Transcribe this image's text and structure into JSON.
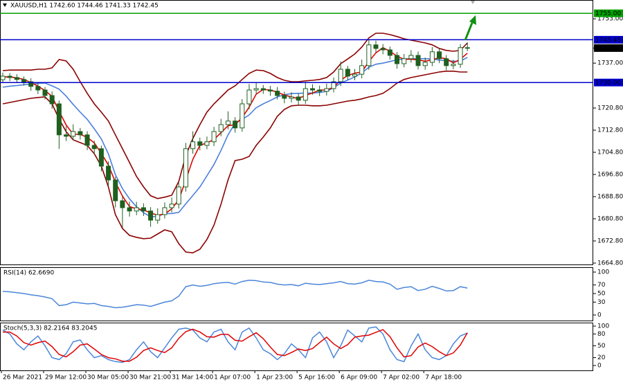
{
  "chart_data": [
    {
      "type": "candlestick",
      "title": "XAUUSD,H1  1742.60 1744.46 1741.33 1742.45",
      "categories": [
        "26 Mar 2021",
        null,
        null,
        null,
        null,
        null,
        "29 Mar 12:00",
        null,
        null,
        null,
        null,
        null,
        "30 Mar 05:00",
        null,
        null,
        null,
        null,
        null,
        "30 Mar 21:00",
        null,
        null,
        null,
        null,
        null,
        "31 Mar 14:00",
        null,
        null,
        null,
        null,
        null,
        "1 Apr 07:00",
        null,
        null,
        null,
        null,
        null,
        "1 Apr 23:00",
        null,
        null,
        null,
        null,
        null,
        "5 Apr 16:00",
        null,
        null,
        null,
        null,
        null,
        "6 Apr 09:00",
        null,
        null,
        null,
        null,
        null,
        "7 Apr 02:00",
        null,
        null,
        null,
        null,
        null,
        "7 Apr 18:00",
        null,
        null,
        null,
        null,
        null,
        null
      ],
      "open": [
        1731.0,
        1732.3,
        1731.8,
        1731.1,
        1730.3,
        1728.6,
        1727.3,
        1725.3,
        1722.3,
        1711.1,
        1710.6,
        1712.3,
        1711.1,
        1707.3,
        1706.1,
        1699.8,
        1694.8,
        1687.3,
        1684.8,
        1683.6,
        1684.8,
        1683.6,
        1680.3,
        1682.3,
        1684.8,
        1686.1,
        1692.3,
        1706.1,
        1708.6,
        1707.3,
        1708.6,
        1712.3,
        1714.8,
        1716.1,
        1713.6,
        1722.3,
        1727.3,
        1727.8,
        1727.3,
        1726.9,
        1725.3,
        1724.3,
        1724.8,
        1723.6,
        1727.8,
        1727.3,
        1726.8,
        1727.8,
        1730.3,
        1734.8,
        1732.3,
        1733.0,
        1736.1,
        1743.6,
        1742.3,
        1741.8,
        1739.8,
        1736.8,
        1738.6,
        1739.8,
        1736.1,
        1737.3,
        1741.1,
        1738.6,
        1736.1,
        1736.6,
        1742.6
      ],
      "high": [
        1733.6,
        1733.4,
        1733.0,
        1732.2,
        1731.5,
        1729.9,
        1728.4,
        1726.8,
        1723.5,
        1714.2,
        1714.9,
        1713.6,
        1712.4,
        1709.0,
        1707.2,
        1701.5,
        1696.0,
        1689.1,
        1687.0,
        1686.9,
        1686.4,
        1685.0,
        1684.6,
        1686.7,
        1688.5,
        1693.9,
        1708.2,
        1712.4,
        1710.1,
        1710.5,
        1714.0,
        1716.9,
        1719.6,
        1717.5,
        1724.0,
        1729.5,
        1729.8,
        1729.1,
        1728.8,
        1728.4,
        1726.7,
        1726.5,
        1726.0,
        1730.2,
        1729.4,
        1728.9,
        1729.6,
        1731.8,
        1737.6,
        1736.0,
        1734.9,
        1738.3,
        1745.5,
        1745.1,
        1743.9,
        1743.0,
        1741.0,
        1740.3,
        1741.7,
        1741.2,
        1739.0,
        1742.8,
        1742.5,
        1739.9,
        1738.2,
        1743.9,
        1744.46
      ],
      "low": [
        1729.9,
        1730.5,
        1729.8,
        1728.9,
        1727.0,
        1725.8,
        1723.9,
        1720.5,
        1706.0,
        1708.9,
        1709.2,
        1709.4,
        1705.6,
        1704.2,
        1697.9,
        1692.6,
        1684.9,
        1677.5,
        1681.6,
        1682.1,
        1681.8,
        1677.9,
        1679.0,
        1680.9,
        1683.1,
        1684.5,
        1690.6,
        1704.3,
        1705.5,
        1705.9,
        1707.0,
        1710.6,
        1713.1,
        1711.9,
        1712.2,
        1720.4,
        1725.6,
        1725.9,
        1725.2,
        1723.9,
        1722.5,
        1722.8,
        1721.8,
        1722.3,
        1725.6,
        1725.1,
        1725.3,
        1726.4,
        1728.7,
        1730.9,
        1730.8,
        1731.5,
        1734.6,
        1740.6,
        1740.2,
        1738.3,
        1735.0,
        1735.5,
        1737.2,
        1734.7,
        1734.6,
        1735.9,
        1737.0,
        1734.4,
        1734.8,
        1735.3,
        1741.33
      ],
      "close": [
        1732.3,
        1731.8,
        1731.1,
        1730.3,
        1728.6,
        1727.3,
        1725.3,
        1722.3,
        1711.1,
        1710.6,
        1712.3,
        1711.1,
        1707.3,
        1706.1,
        1699.8,
        1694.8,
        1687.3,
        1684.8,
        1683.6,
        1684.8,
        1683.6,
        1680.3,
        1682.3,
        1684.8,
        1686.1,
        1692.3,
        1706.1,
        1708.6,
        1707.3,
        1708.6,
        1712.3,
        1714.8,
        1716.1,
        1713.6,
        1722.3,
        1727.3,
        1727.8,
        1727.3,
        1726.9,
        1725.3,
        1724.3,
        1724.8,
        1723.6,
        1727.8,
        1727.3,
        1726.8,
        1727.8,
        1730.3,
        1734.8,
        1732.3,
        1733.0,
        1736.1,
        1743.6,
        1742.3,
        1741.8,
        1739.8,
        1736.8,
        1738.6,
        1739.8,
        1736.1,
        1737.3,
        1741.1,
        1738.6,
        1736.1,
        1736.6,
        1742.6,
        1742.45
      ],
      "up_color": "#ffffff",
      "down_color": "#1f5f1f",
      "candle_stroke": "#1f5f1f",
      "overlays": [
        {
          "color": "#8b0000",
          "values": [
            1734.3,
            1734.5,
            1734.5,
            1734.5,
            1734.5,
            1734.8,
            1734.8,
            1735.3,
            1738.3,
            1737.8,
            1734.8,
            1730.3,
            1726.1,
            1722.3,
            1719.3,
            1716.1,
            1711.1,
            1706.1,
            1701.1,
            1696.1,
            1692.3,
            1689.1,
            1688.1,
            1688.6,
            1689.3,
            1694.3,
            1703.6,
            1709.8,
            1714.8,
            1719.3,
            1722.3,
            1724.8,
            1727.3,
            1728.8,
            1731.1,
            1733.3,
            1734.5,
            1734.3,
            1733.3,
            1731.8,
            1730.8,
            1730.3,
            1730.3,
            1730.6,
            1730.8,
            1731.1,
            1731.8,
            1733.8,
            1736.8,
            1738.5,
            1740.3,
            1742.8,
            1746.1,
            1747.8,
            1747.8,
            1747.3,
            1746.6,
            1745.8,
            1745.3,
            1744.8,
            1744.3,
            1743.6,
            1742.3,
            1741.6,
            1741.3,
            1741.6,
            1744.3
          ]
        },
        {
          "color": "#8b0000",
          "values": [
            1722.3,
            1722.8,
            1723.3,
            1723.8,
            1724.3,
            1724.6,
            1724.8,
            1722.3,
            1716.8,
            1712.3,
            1709.3,
            1708.3,
            1707.3,
            1704.3,
            1699.8,
            1692.3,
            1682.3,
            1677.3,
            1674.8,
            1674.1,
            1673.6,
            1673.8,
            1675.3,
            1676.8,
            1676.1,
            1671.8,
            1668.8,
            1668.5,
            1669.8,
            1673.3,
            1678.5,
            1686.1,
            1694.8,
            1701.8,
            1702.3,
            1703.3,
            1707.3,
            1710.3,
            1713.6,
            1717.8,
            1720.3,
            1721.6,
            1721.8,
            1721.8,
            1721.6,
            1721.6,
            1721.8,
            1722.3,
            1722.8,
            1723.3,
            1723.6,
            1724.1,
            1724.8,
            1725.3,
            1726.1,
            1727.8,
            1729.8,
            1731.1,
            1731.8,
            1732.3,
            1732.8,
            1733.3,
            1733.8,
            1734.1,
            1734.1,
            1733.8,
            1733.8
          ]
        },
        {
          "color": "#4a7fdc",
          "values": [
            1728.3,
            1728.7,
            1728.9,
            1729.2,
            1729.4,
            1729.7,
            1729.8,
            1728.8,
            1727.6,
            1725.1,
            1722.1,
            1719.3,
            1716.7,
            1713.3,
            1709.6,
            1704.2,
            1696.7,
            1691.7,
            1688.0,
            1685.1,
            1683.0,
            1681.5,
            1681.7,
            1682.7,
            1682.7,
            1683.1,
            1686.2,
            1689.2,
            1692.3,
            1696.3,
            1700.4,
            1705.5,
            1711.1,
            1715.3,
            1716.7,
            1718.3,
            1720.9,
            1722.3,
            1723.5,
            1724.8,
            1725.6,
            1726.0,
            1726.1,
            1726.2,
            1726.2,
            1726.4,
            1726.8,
            1728.1,
            1729.8,
            1730.9,
            1732.0,
            1733.5,
            1735.5,
            1736.6,
            1737.0,
            1737.6,
            1738.2,
            1738.5,
            1738.6,
            1738.6,
            1738.6,
            1738.5,
            1738.1,
            1737.9,
            1737.7,
            1737.7,
            1739.1
          ]
        },
        {
          "color": "#e00000",
          "values": [
            1732.0,
            1732.0,
            1731.7,
            1731.1,
            1730.0,
            1728.7,
            1727.1,
            1725.0,
            1719.6,
            1714.7,
            1711.3,
            1711.3,
            1710.2,
            1708.2,
            1704.4,
            1700.2,
            1694.0,
            1689.0,
            1685.2,
            1684.4,
            1684.0,
            1682.9,
            1682.1,
            1682.5,
            1684.4,
            1687.7,
            1694.8,
            1702.3,
            1707.3,
            1708.2,
            1709.4,
            1711.9,
            1714.4,
            1714.8,
            1717.3,
            1721.1,
            1725.8,
            1727.5,
            1727.3,
            1726.5,
            1725.5,
            1724.8,
            1724.2,
            1725.4,
            1726.2,
            1727.3,
            1727.3,
            1728.3,
            1730.9,
            1732.5,
            1733.4,
            1733.8,
            1737.6,
            1740.7,
            1742.6,
            1741.3,
            1739.5,
            1738.4,
            1738.4,
            1738.2,
            1737.7,
            1738.2,
            1739.0,
            1738.6,
            1737.1,
            1738.4,
            1740.6
          ]
        }
      ],
      "levels": [
        {
          "value": 1755,
          "label": "1755.00",
          "color": "#00a000"
        },
        {
          "value": 1745.45,
          "label": "1745.45",
          "color": "#0000cc"
        },
        {
          "value": 1730,
          "label": "1730.00",
          "color": "#0000cc"
        }
      ],
      "last_price": {
        "value": 1742.45,
        "label": "1742.45"
      },
      "ylim": [
        1664.3,
        1759.8
      ],
      "yticks": [
        {
          "value": 1753,
          "label": "1753.00"
        },
        {
          "value": 1737,
          "label": "1737.00"
        },
        {
          "value": 1720.8,
          "label": "1720.80"
        },
        {
          "value": 1712.8,
          "label": "1712.80"
        },
        {
          "value": 1704.8,
          "label": "1704.80"
        },
        {
          "value": 1696.8,
          "label": "1696.80"
        },
        {
          "value": 1688.8,
          "label": "1688.80"
        },
        {
          "value": 1680.8,
          "label": "1680.80"
        },
        {
          "value": 1672.8,
          "label": "1672.80"
        },
        {
          "value": 1664.8,
          "label": "1664.80"
        }
      ]
    },
    {
      "type": "line",
      "title": "RSI(14) 62.6690",
      "series": [
        {
          "color": "#4a86d8",
          "values": [
            55,
            54,
            52,
            50,
            47,
            45,
            42,
            38,
            22,
            24,
            30,
            28,
            26,
            27,
            22,
            20,
            17,
            18,
            21,
            24,
            23,
            20,
            25,
            30,
            33,
            44,
            66,
            70,
            67,
            69,
            73,
            75,
            76,
            72,
            78,
            81,
            80,
            77,
            76,
            72,
            70,
            71,
            68,
            74,
            72,
            71,
            73,
            75,
            78,
            73,
            72,
            75,
            81,
            78,
            77,
            72,
            60,
            64,
            66,
            57,
            60,
            67,
            62,
            56,
            57,
            66,
            62.669
          ]
        }
      ],
      "ylim": [
        -12.9,
        111.3
      ],
      "yticks": [
        100,
        70,
        50,
        30,
        0
      ]
    },
    {
      "type": "line",
      "title": "Stoch(5,3,3) 82.2164 83.2045",
      "series": [
        {
          "color": "#4a86d8",
          "values": [
            90,
            80,
            55,
            40,
            60,
            75,
            50,
            20,
            15,
            30,
            60,
            65,
            40,
            20,
            25,
            15,
            10,
            8,
            15,
            40,
            60,
            35,
            20,
            45,
            70,
            92,
            95,
            90,
            70,
            60,
            85,
            92,
            60,
            40,
            85,
            95,
            70,
            40,
            30,
            15,
            30,
            55,
            40,
            20,
            70,
            85,
            60,
            20,
            50,
            90,
            75,
            60,
            95,
            98,
            80,
            40,
            15,
            10,
            50,
            80,
            40,
            20,
            15,
            25,
            55,
            75,
            82.2164
          ]
        },
        {
          "color": "#e00000",
          "values": [
            85,
            85,
            75,
            58,
            52,
            58,
            62,
            48,
            28,
            22,
            35,
            52,
            55,
            42,
            28,
            20,
            17,
            11,
            11,
            21,
            38,
            45,
            38,
            33,
            45,
            69,
            86,
            92,
            85,
            73,
            72,
            79,
            79,
            64,
            62,
            73,
            83,
            68,
            47,
            28,
            25,
            33,
            42,
            38,
            43,
            58,
            72,
            55,
            43,
            53,
            72,
            75,
            77,
            84,
            91,
            73,
            45,
            22,
            25,
            47,
            57,
            48,
            35,
            25,
            32,
            52,
            83.2045
          ]
        }
      ],
      "ylim": [
        -12.3,
        108.8
      ],
      "yticks": [
        100,
        80,
        50,
        20,
        0
      ]
    }
  ]
}
